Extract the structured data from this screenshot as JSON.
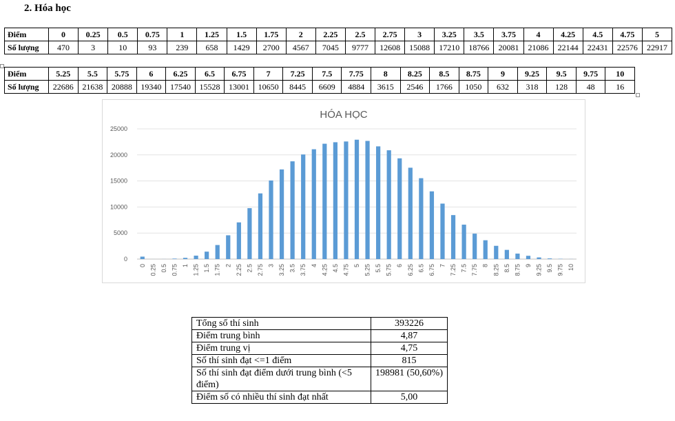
{
  "heading": "2.  Hóa học",
  "row_label_score": "Điểm",
  "row_label_count": "Số lượng",
  "table1": {
    "scores": [
      "0",
      "0.25",
      "0.5",
      "0.75",
      "1",
      "1.25",
      "1.5",
      "1.75",
      "2",
      "2.25",
      "2.5",
      "2.75",
      "3",
      "3.25",
      "3.5",
      "3.75",
      "4",
      "4.25",
      "4.5",
      "4.75",
      "5"
    ],
    "counts": [
      "470",
      "3",
      "10",
      "93",
      "239",
      "658",
      "1429",
      "2700",
      "4567",
      "7045",
      "9777",
      "12608",
      "15088",
      "17210",
      "18766",
      "20081",
      "21086",
      "22144",
      "22431",
      "22576",
      "22917"
    ]
  },
  "table2": {
    "scores": [
      "5.25",
      "5.5",
      "5.75",
      "6",
      "6.25",
      "6.5",
      "6.75",
      "7",
      "7.25",
      "7.5",
      "7.75",
      "8",
      "8.25",
      "8.5",
      "8.75",
      "9",
      "9.25",
      "9.5",
      "9.75",
      "10"
    ],
    "counts": [
      "22686",
      "21638",
      "20888",
      "19340",
      "17540",
      "15528",
      "13001",
      "10650",
      "8445",
      "6609",
      "4884",
      "3615",
      "2546",
      "1766",
      "1050",
      "632",
      "318",
      "128",
      "48",
      "16"
    ]
  },
  "chart_data": {
    "type": "bar",
    "title": "HÓA HỌC",
    "xlabel": "",
    "ylabel": "",
    "ylim": [
      0,
      25000
    ],
    "yticks": [
      "0",
      "5000",
      "10000",
      "15000",
      "20000",
      "25000"
    ],
    "grid": true,
    "legend": "none",
    "bar_color": "#5b9bd5",
    "categories": [
      "0",
      "0.25",
      "0.5",
      "0.75",
      "1",
      "1.25",
      "1.5",
      "1.75",
      "2",
      "2.25",
      "2.5",
      "2.75",
      "3",
      "3.25",
      "3.5",
      "3.75",
      "4",
      "4.25",
      "4.5",
      "4.75",
      "5",
      "5.25",
      "5.5",
      "5.75",
      "6",
      "6.25",
      "6.5",
      "6.75",
      "7",
      "7.25",
      "7.5",
      "7.75",
      "8",
      "8.25",
      "8.5",
      "8.75",
      "9",
      "9.25",
      "9.5",
      "9.75",
      "10"
    ],
    "values": [
      470,
      3,
      10,
      93,
      239,
      658,
      1429,
      2700,
      4567,
      7045,
      9777,
      12608,
      15088,
      17210,
      18766,
      20081,
      21086,
      22144,
      22431,
      22576,
      22917,
      22686,
      21638,
      20888,
      19340,
      17540,
      15528,
      13001,
      10650,
      8445,
      6609,
      4884,
      3615,
      2546,
      1766,
      1050,
      632,
      318,
      128,
      48,
      16
    ]
  },
  "stats": [
    {
      "label": "Tổng số thí sinh",
      "value": "393226"
    },
    {
      "label": "Điểm trung bình",
      "value": "4,87"
    },
    {
      "label": "Điểm trung vị",
      "value": "4,75"
    },
    {
      "label": "Số thí sinh đạt <=1 điểm",
      "value": "815"
    },
    {
      "label": "Số thí sinh đạt điểm dưới trung bình (<5 điểm)",
      "value": "198981 (50,60%)"
    },
    {
      "label": "Điểm số có nhiều thí sinh đạt nhất",
      "value": "5,00"
    }
  ]
}
